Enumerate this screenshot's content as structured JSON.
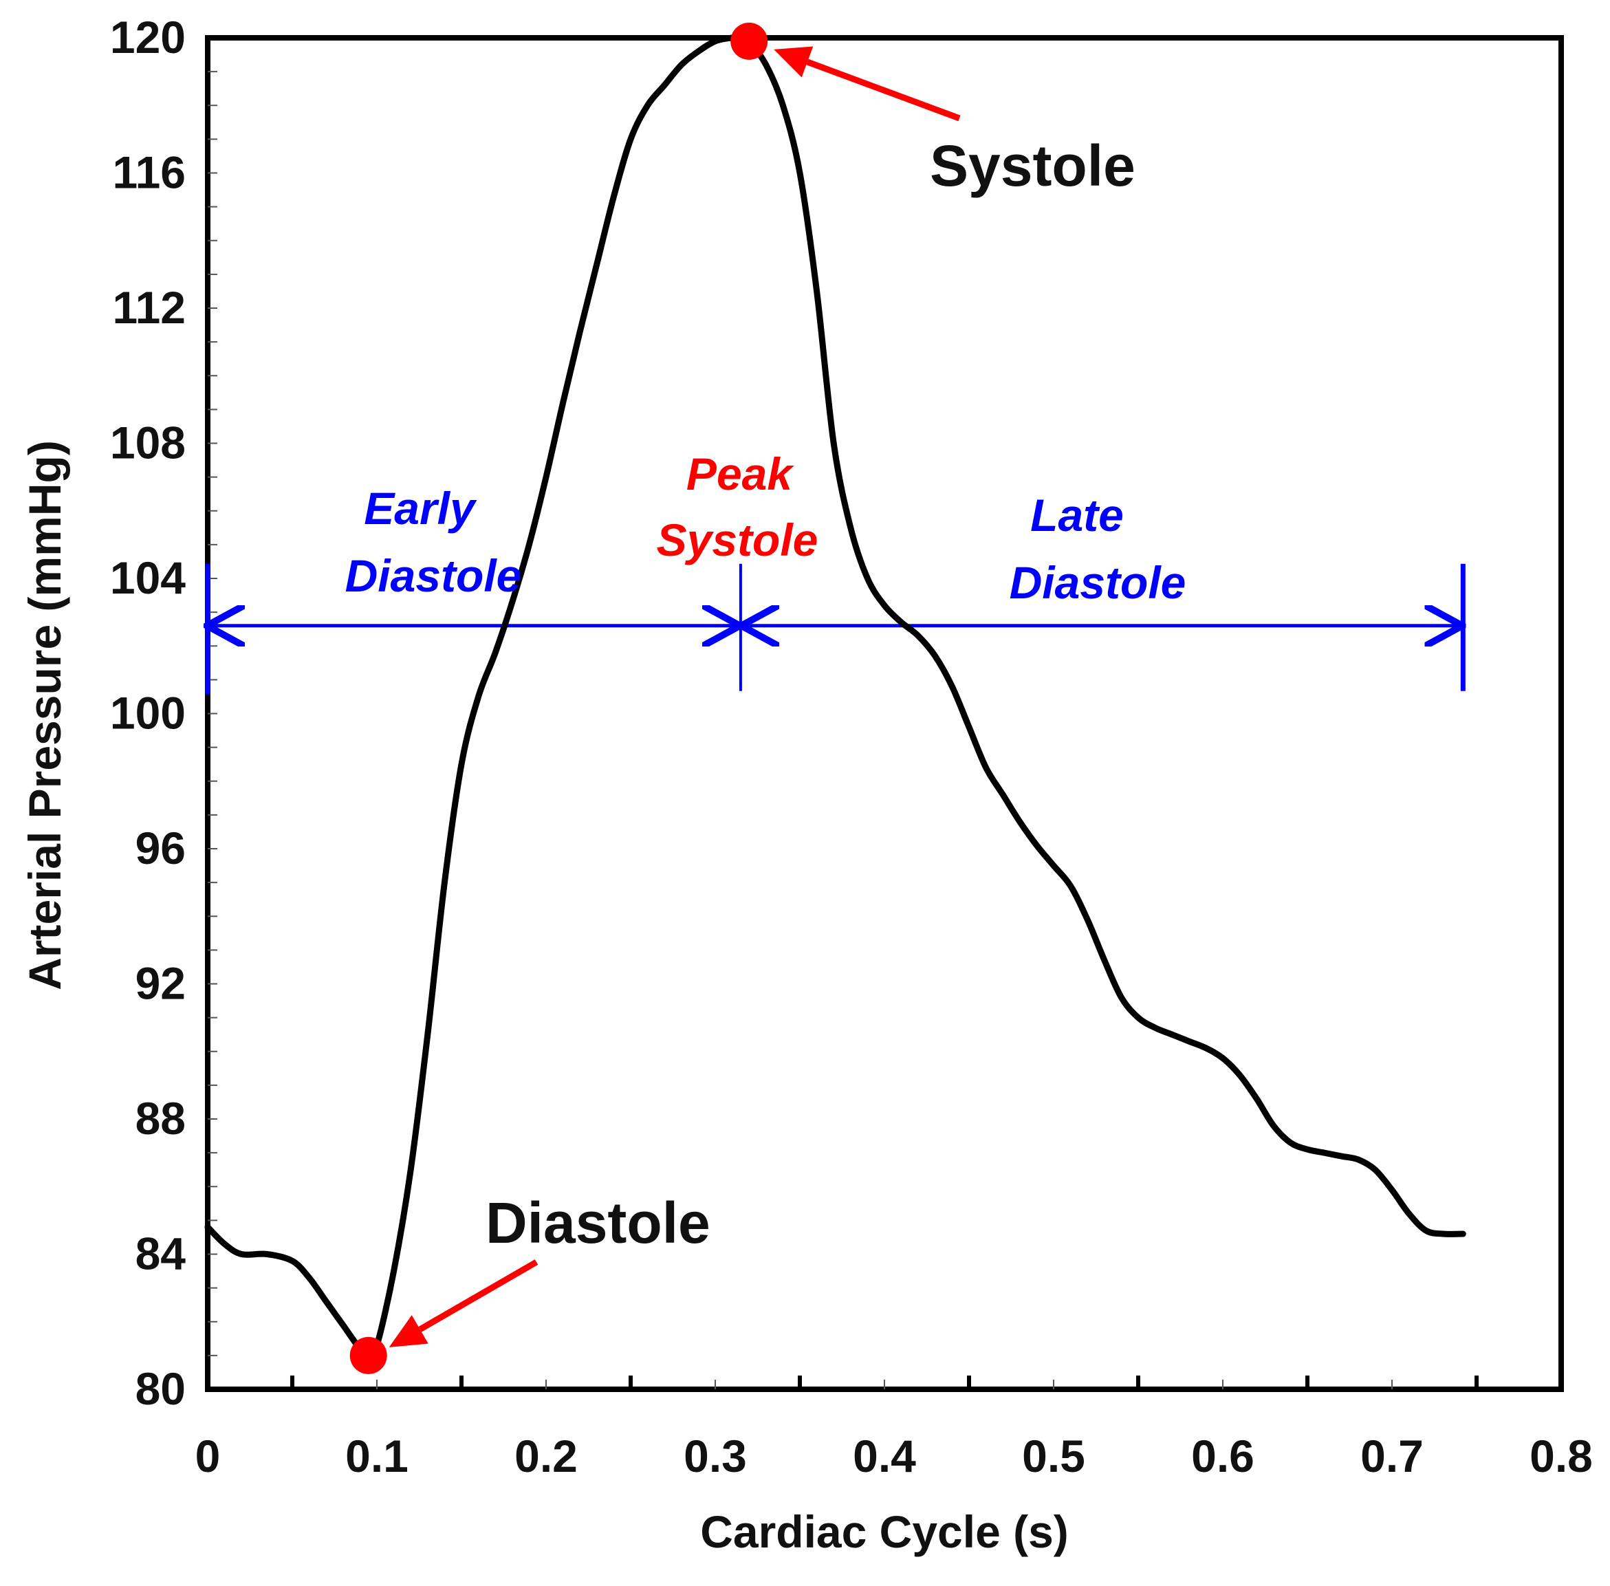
{
  "chart_data": {
    "type": "line",
    "title": "",
    "xlabel": "Cardiac Cycle (s)",
    "ylabel": "Arterial Pressure (mmHg)",
    "xlim": [
      0,
      0.8
    ],
    "ylim": [
      80,
      120
    ],
    "x_ticks": [
      0,
      0.1,
      0.2,
      0.3,
      0.4,
      0.5,
      0.6,
      0.7,
      0.8
    ],
    "x_tick_labels": [
      "0",
      "0.1",
      "0.2",
      "0.3",
      "0.4",
      "0.5",
      "0.6",
      "0.7",
      "0.8"
    ],
    "y_ticks": [
      80,
      84,
      88,
      92,
      96,
      100,
      104,
      108,
      112,
      116,
      120
    ],
    "y_tick_labels": [
      "80",
      "84",
      "88",
      "92",
      "96",
      "100",
      "104",
      "108",
      "112",
      "116",
      "120"
    ],
    "grid": false,
    "series": [
      {
        "name": "Arterial Pressure",
        "color": "#000000",
        "x": [
          0.0,
          0.01,
          0.02,
          0.035,
          0.05,
          0.06,
          0.07,
          0.08,
          0.09,
          0.095,
          0.1,
          0.11,
          0.12,
          0.13,
          0.14,
          0.15,
          0.16,
          0.17,
          0.18,
          0.19,
          0.2,
          0.21,
          0.22,
          0.23,
          0.24,
          0.25,
          0.26,
          0.27,
          0.28,
          0.29,
          0.3,
          0.31,
          0.316,
          0.32,
          0.33,
          0.34,
          0.35,
          0.36,
          0.37,
          0.38,
          0.39,
          0.4,
          0.41,
          0.42,
          0.43,
          0.44,
          0.45,
          0.46,
          0.47,
          0.48,
          0.49,
          0.5,
          0.51,
          0.52,
          0.53,
          0.54,
          0.55,
          0.56,
          0.57,
          0.58,
          0.59,
          0.6,
          0.61,
          0.62,
          0.63,
          0.64,
          0.65,
          0.66,
          0.67,
          0.68,
          0.69,
          0.7,
          0.71,
          0.72,
          0.73,
          0.742
        ],
        "y": [
          84.8,
          84.3,
          84.0,
          84.0,
          83.8,
          83.3,
          82.6,
          81.9,
          81.2,
          81.0,
          81.3,
          83.5,
          86.5,
          90.5,
          95.0,
          98.5,
          100.5,
          101.8,
          103.3,
          105.0,
          107.0,
          109.2,
          111.3,
          113.3,
          115.3,
          117.0,
          118.0,
          118.6,
          119.2,
          119.6,
          119.9,
          120.0,
          120.0,
          119.9,
          119.2,
          118.0,
          116.0,
          112.5,
          108.0,
          105.5,
          104.0,
          103.2,
          102.7,
          102.3,
          101.7,
          100.8,
          99.6,
          98.4,
          97.6,
          96.8,
          96.1,
          95.5,
          94.9,
          93.9,
          92.7,
          91.6,
          91.0,
          90.7,
          90.5,
          90.3,
          90.1,
          89.8,
          89.3,
          88.6,
          87.8,
          87.3,
          87.1,
          87.0,
          86.9,
          86.8,
          86.5,
          85.9,
          85.2,
          84.7,
          84.6,
          84.6
        ]
      }
    ],
    "markers": [
      {
        "name": "Systole",
        "x": 0.32,
        "y": 119.9,
        "color": "#ff0000"
      },
      {
        "name": "Diastole",
        "x": 0.095,
        "y": 81.0,
        "color": "#ff0000"
      }
    ],
    "annotations": {
      "systole_label": "Systole",
      "diastole_label": "Diastole",
      "peak_systole_line1": "Peak",
      "peak_systole_line2": "Systole",
      "early_diastole_line1": "Early",
      "early_diastole_line2": "Diastole",
      "late_diastole_line1": "Late",
      "late_diastole_line2": "Diastole"
    },
    "phases": {
      "start_x": 0.0,
      "split_x": 0.315,
      "end_x": 0.742,
      "level_y": 102.6,
      "color": "#0000ff"
    },
    "peak_label_color": "#ff0000"
  }
}
